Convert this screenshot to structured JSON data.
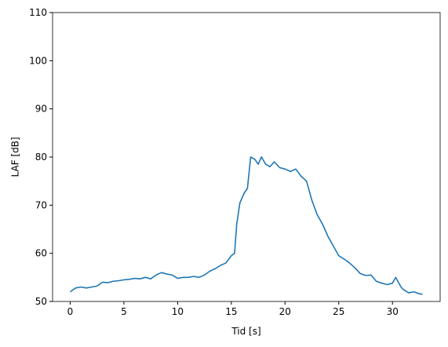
{
  "chart_data": {
    "type": "line",
    "x_label": "Tid [s]",
    "y_label": "LAF [dB]",
    "x": [
      0,
      0.5,
      1,
      1.5,
      2,
      2.5,
      3,
      3.5,
      4,
      4.5,
      5,
      5.5,
      6,
      6.5,
      7,
      7.5,
      8,
      8.5,
      9,
      9.5,
      10,
      10.5,
      11,
      11.5,
      12,
      12.5,
      13,
      13.5,
      14,
      14.5,
      15,
      15.3,
      15.5,
      15.8,
      16.2,
      16.5,
      16.8,
      17.2,
      17.5,
      17.8,
      18.2,
      18.6,
      19,
      19.5,
      20,
      20.5,
      21,
      21.5,
      22,
      22.5,
      23,
      23.5,
      24,
      24.5,
      25,
      25.5,
      26,
      26.5,
      27,
      27.5,
      28,
      28.5,
      29,
      29.5,
      30,
      30.3,
      30.8,
      31,
      31.5,
      32,
      32.5,
      32.8
    ],
    "series": [
      {
        "color": "#1f77b4",
        "values": [
          52,
          52.8,
          53,
          52.8,
          53,
          53.2,
          54,
          53.9,
          54.2,
          54.3,
          54.5,
          54.6,
          54.8,
          54.7,
          55,
          54.7,
          55.5,
          56,
          55.7,
          55.5,
          54.8,
          55,
          55,
          55.2,
          55,
          55.5,
          56.3,
          56.8,
          57.5,
          58,
          59.5,
          60,
          66,
          70.5,
          72.5,
          73.5,
          80,
          79.5,
          78.5,
          80,
          78.5,
          78,
          79,
          77.8,
          77.5,
          77,
          77.5,
          76,
          75,
          71,
          68,
          66,
          63.5,
          61.5,
          59.5,
          58.8,
          58,
          57,
          55.8,
          55.4,
          55.5,
          54.2,
          53.8,
          53.5,
          53.8,
          55,
          53,
          52.5,
          51.8,
          52,
          51.6,
          51.5
        ]
      }
    ],
    "xlim": [
      -1.64,
      34.44
    ],
    "xticks": [
      0,
      5,
      10,
      15,
      20,
      25,
      30
    ],
    "ylim": [
      50,
      110
    ],
    "yticks": [
      50,
      60,
      70,
      80,
      90,
      100,
      110
    ]
  }
}
